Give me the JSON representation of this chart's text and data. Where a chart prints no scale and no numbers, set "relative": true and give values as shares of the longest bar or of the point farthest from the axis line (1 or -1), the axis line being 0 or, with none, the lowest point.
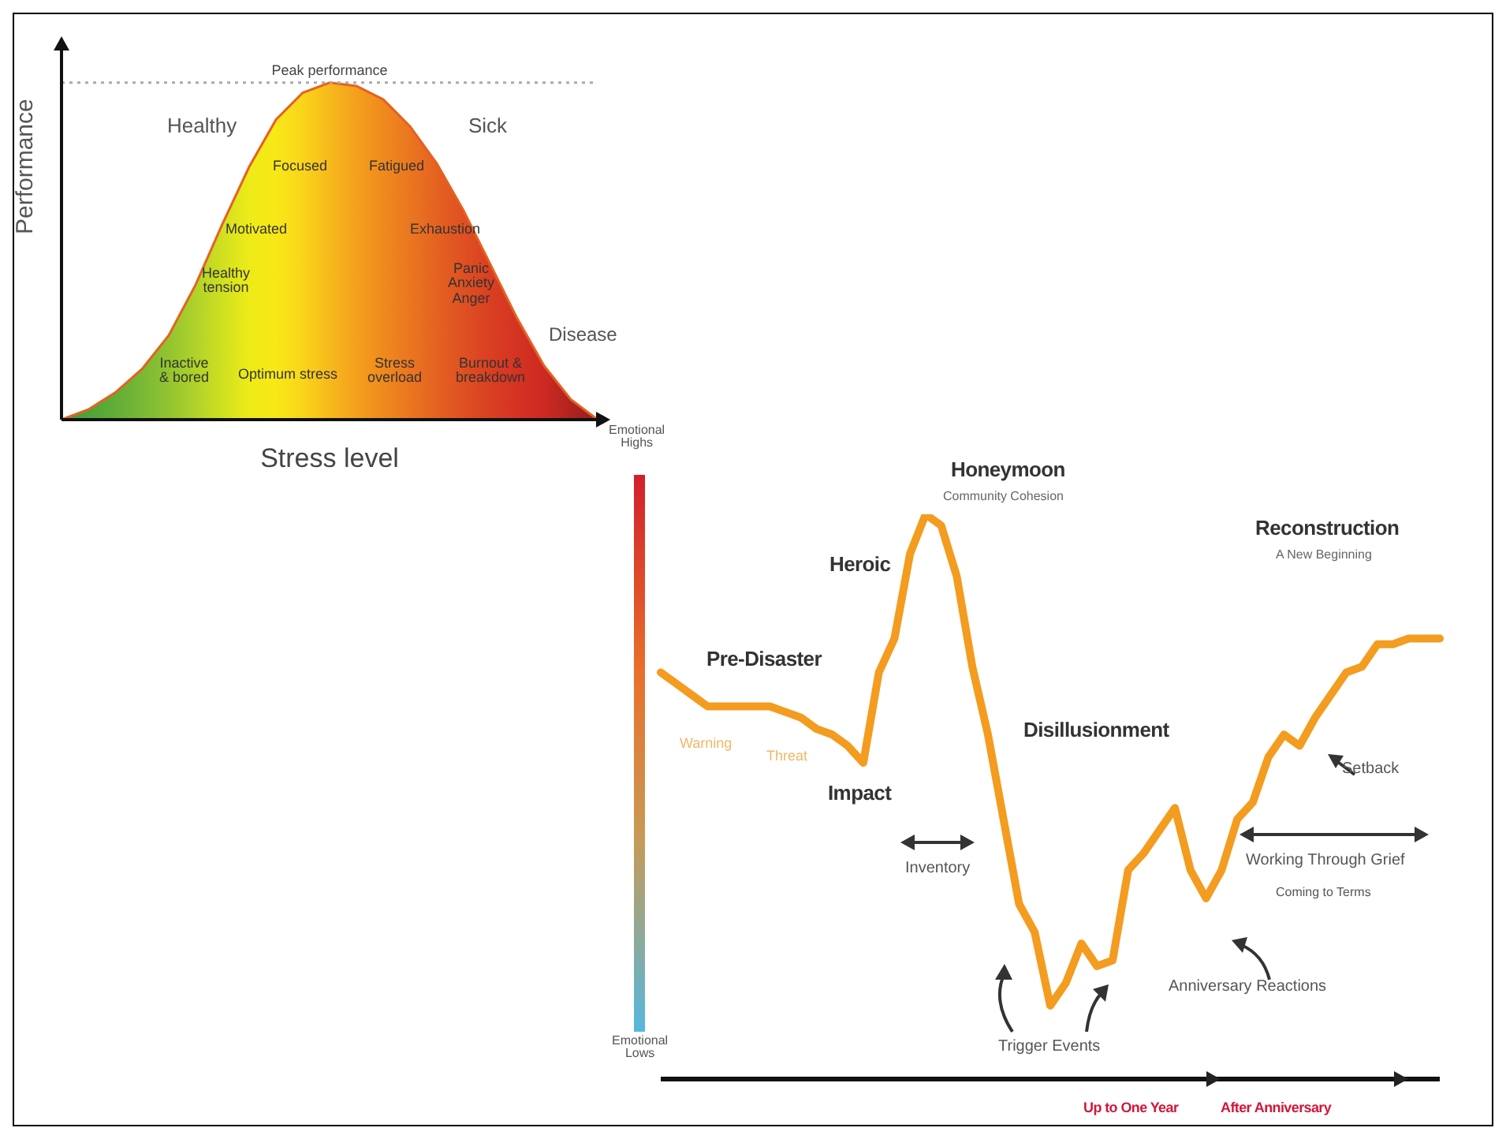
{
  "chart_data": [
    {
      "type": "area",
      "relative": true,
      "xlabel": "Stress level",
      "ylabel": "Performance",
      "categories": [
        null,
        null,
        null,
        null,
        null,
        null,
        null,
        null,
        null,
        null,
        null,
        null,
        null,
        null,
        null,
        null,
        null,
        null,
        null,
        null,
        null
      ],
      "color": "#e46221",
      "values": [
        0,
        0.03,
        0.08,
        0.15,
        0.25,
        0.4,
        0.58,
        0.75,
        0.89,
        0.97,
        1,
        0.99,
        0.95,
        0.87,
        0.76,
        0.62,
        0.46,
        0.3,
        0.16,
        0.06,
        0
      ],
      "colors": [
        "#3d9a3c",
        "#4ea33a",
        "#62ad38",
        "#79b835",
        "#92c430",
        "#b0d22a",
        "#d0e020",
        "#eeeb18",
        "#f8e817",
        "#f9d51a",
        "#f7b91c",
        "#f4a01d",
        "#ef8a1e",
        "#ea7620",
        "#e46221",
        "#df5022",
        "#d93f22",
        "#d53322",
        "#cc2a22",
        "#b02420",
        "#8e1f1d"
      ],
      "ref_lines": [
        {
          "axis": "y",
          "value": 1,
          "label": "Peak performance",
          "line_style": "dotted",
          "color": "#aaaaaa"
        }
      ],
      "annotations": [
        "Healthy",
        "Sick",
        "Focused",
        "Fatigued",
        "Motivated",
        "Exhaustion",
        "Healthy\ntension",
        "Panic\nAnxiety\nAnger",
        "Disease",
        "Inactive\n& bored",
        "Optimum stress",
        "Stress\noverload",
        "Burnout &\nbreakdown"
      ]
    },
    {
      "type": "line",
      "relative": true,
      "categories": [
        null,
        null,
        null,
        null,
        null,
        null,
        null,
        null,
        null,
        null,
        null,
        null,
        null,
        null,
        null,
        null,
        null,
        null,
        null,
        null,
        null,
        null,
        null,
        null,
        null,
        null,
        null,
        null,
        null,
        null,
        null,
        null,
        null,
        null,
        null,
        null,
        null,
        null,
        null,
        null,
        null,
        null,
        null,
        null,
        null,
        null,
        null,
        null,
        null,
        null,
        null
      ],
      "series": [
        {
          "color": "#f39c1f",
          "values": [
            0.72,
            0.7,
            0.68,
            0.66,
            0.66,
            0.66,
            0.66,
            0.66,
            0.65,
            0.64,
            0.62,
            0.61,
            0.59,
            0.56,
            0.72,
            0.78,
            0.93,
            1,
            0.98,
            0.89,
            0.73,
            0.61,
            0.46,
            0.31,
            0.26,
            0.13,
            0.17,
            0.24,
            0.2,
            0.21,
            0.37,
            0.4,
            0.44,
            0.48,
            0.37,
            0.32,
            0.37,
            0.46,
            0.49,
            0.57,
            0.61,
            0.59,
            0.64,
            0.68,
            0.72,
            0.73,
            0.77,
            0.77,
            0.78,
            0.78,
            0.78
          ]
        }
      ],
      "annotations": [
        "Pre-Disaster",
        "Warning",
        "Threat",
        "Impact",
        "Heroic",
        "Honeymoon",
        "Community Cohesion",
        "Disillusionment",
        "Inventory",
        "Trigger Events",
        "Anniversary Reactions",
        "Reconstruction",
        "A New Beginning",
        "Setback",
        "Working Through Grief",
        "Coming to Terms",
        "Up to One Year",
        "After Anniversary",
        "Emotional\nHighs",
        "Emotional\nLows"
      ]
    }
  ]
}
